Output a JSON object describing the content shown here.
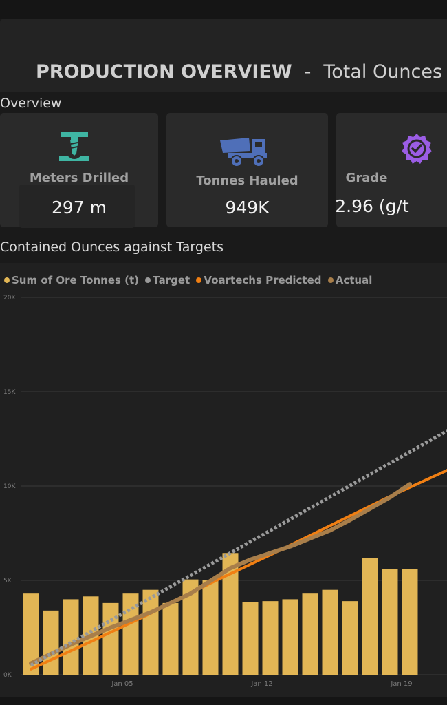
{
  "header": {
    "title": "PRODUCTION OVERVIEW",
    "separator": "-",
    "subtitle": "Total Ounces"
  },
  "overview": {
    "section_label": "Overview",
    "cards": [
      {
        "label": "Meters Drilled",
        "value": "297 m",
        "icon": "drill-icon",
        "icon_color": "#3fb5a3"
      },
      {
        "label": "Tonnes Hauled",
        "value": "949K",
        "icon": "haul-truck-icon",
        "icon_color": "#4f6fb8"
      },
      {
        "label": "Grade",
        "value": "2.96 (g/t",
        "icon": "badge-check-icon",
        "icon_color": "#9b5de5"
      }
    ]
  },
  "chart_section": {
    "section_label": "Contained Ounces against Targets"
  },
  "colors": {
    "bar": "#e2b655",
    "target": "#9a9a9a",
    "predicted": "#f07f13",
    "actual": "#a87e4a",
    "gridline": "#3a3a3a"
  },
  "chart_data": {
    "type": "bar",
    "legend": [
      {
        "name": "Sum of Ore Tonnes (t)",
        "color": "#e2b655"
      },
      {
        "name": "Target",
        "color": "#9a9a9a"
      },
      {
        "name": "Voartechs Predicted",
        "color": "#f07f13"
      },
      {
        "name": "Actual",
        "color": "#a87e4a"
      }
    ],
    "y_ticks": [
      "0K",
      "5K",
      "10K",
      "15K",
      "20K"
    ],
    "ylim": [
      0,
      20000
    ],
    "x_tick_labels": [
      {
        "label": "Jan 05",
        "index": 4
      },
      {
        "label": "Jan 12",
        "index": 11
      },
      {
        "label": "Jan 19",
        "index": 18
      }
    ],
    "grid": true,
    "bars": {
      "name": "Sum of Ore Tonnes (t)",
      "values": [
        4300,
        3400,
        4000,
        4150,
        3800,
        4300,
        4500,
        3800,
        5050,
        5000,
        6450,
        3850,
        3900,
        4000,
        4300,
        4500,
        3900,
        6200,
        5600,
        5600
      ]
    },
    "target": {
      "name": "Target",
      "x": [
        0,
        21
      ],
      "y": [
        500,
        13000
      ]
    },
    "predicted": {
      "name": "Voartechs Predicted",
      "x": [
        0,
        3,
        6,
        9,
        12,
        15,
        18,
        21
      ],
      "y": [
        300,
        1750,
        3250,
        4850,
        6350,
        7900,
        9450,
        10900
      ]
    },
    "actual": {
      "name": "Actual",
      "x": [
        0,
        2,
        4,
        6,
        8,
        10,
        11,
        13,
        15,
        16,
        18,
        19
      ],
      "y": [
        600,
        1600,
        2500,
        3300,
        4300,
        5650,
        6100,
        6800,
        7650,
        8200,
        9400,
        10100
      ]
    }
  }
}
